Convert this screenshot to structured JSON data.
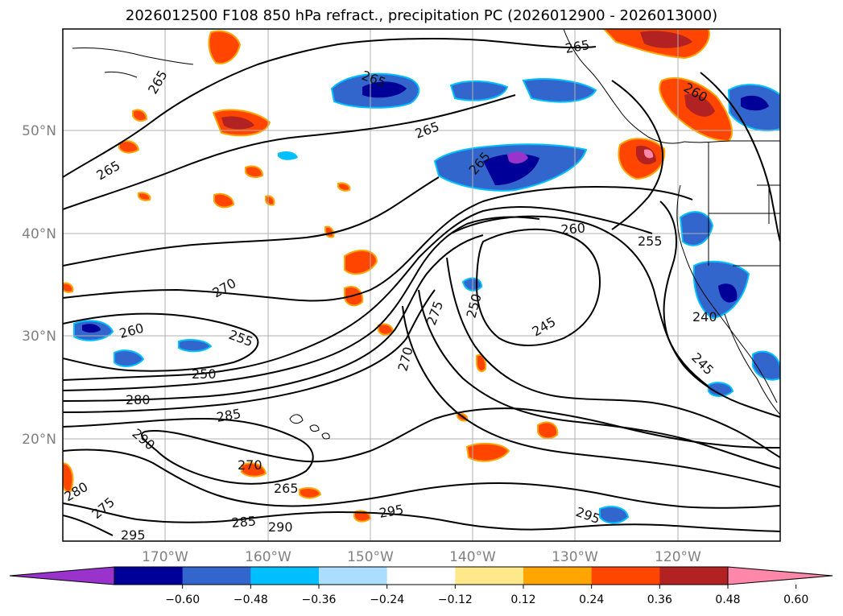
{
  "title": "2026012500 F108 850 hPa refract., precipitation PC (2026012900 - 2026013000)",
  "map": {
    "lat_labels": [
      "50°N",
      "40°N",
      "30°N",
      "20°N"
    ],
    "lon_labels": [
      "170°W",
      "160°W",
      "150°W",
      "140°W",
      "130°W",
      "120°W"
    ],
    "gridlines": true
  },
  "contours": {
    "labels": [
      "265",
      "265",
      "265",
      "265",
      "265",
      "265",
      "260",
      "260",
      "260",
      "255",
      "255",
      "250",
      "250",
      "245",
      "245",
      "240",
      "270",
      "270",
      "270",
      "275",
      "280",
      "280",
      "285",
      "285",
      "290",
      "290",
      "295",
      "295",
      "295",
      "275",
      "265"
    ]
  },
  "colorbar": {
    "colors": [
      "#9933cc",
      "#000099",
      "#3366cc",
      "#00bfff",
      "#aaddff",
      "#ffffff",
      "#ffe88a",
      "#ffa500",
      "#ff4500",
      "#b22222",
      "#ff88aa"
    ],
    "tick_labels": [
      "−0.60",
      "−0.48",
      "−0.36",
      "−0.24",
      "−0.12",
      "0.12",
      "0.24",
      "0.36",
      "0.48",
      "0.60"
    ],
    "extend": "both"
  },
  "colors": {
    "contour": "#000000",
    "grid": "#b0b0b0",
    "coast": "#000000"
  }
}
